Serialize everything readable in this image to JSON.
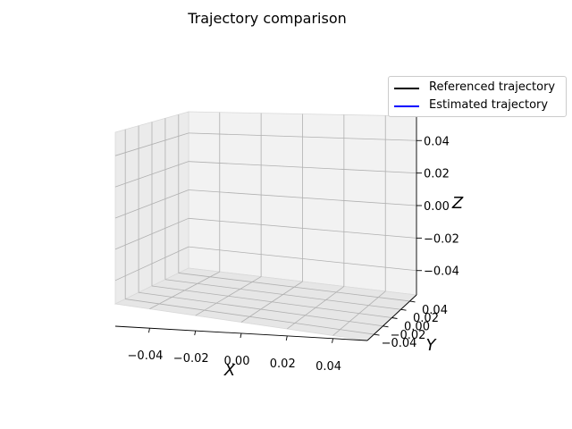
{
  "chart_data": {
    "type": "line",
    "projection": "3d",
    "title": "Trajectory comparison",
    "xlabel": "X",
    "ylabel": "Y",
    "zlabel": "Z",
    "xlim": [
      -0.055,
      0.055
    ],
    "ylim": [
      -0.055,
      0.055
    ],
    "zlim": [
      -0.055,
      0.055
    ],
    "x_ticks": [
      "−0.04",
      "−0.02",
      "0.00",
      "0.02",
      "0.04"
    ],
    "y_ticks": [
      "−0.04",
      "−0.02",
      "0.00",
      "0.02",
      "0.04"
    ],
    "z_ticks": [
      "−0.04",
      "−0.02",
      "0.00",
      "0.02",
      "0.04"
    ],
    "grid": true,
    "legend_position": "upper right",
    "series": [
      {
        "name": "Referenced trajectory",
        "color": "#000000",
        "x": [],
        "y": [],
        "z": []
      },
      {
        "name": "Estimated trajectory",
        "color": "#0000ff",
        "x": [],
        "y": [],
        "z": []
      }
    ]
  }
}
